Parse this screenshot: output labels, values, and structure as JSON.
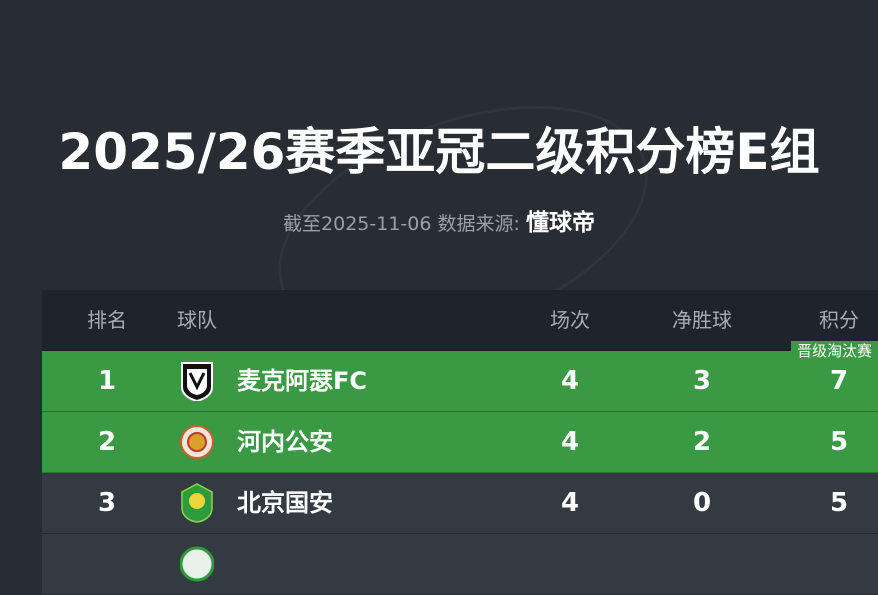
{
  "header": {
    "title": "2025/26赛季亚冠二级积分榜E组",
    "subtitle_prefix": "截至2025-11-06 数据来源:",
    "source": "懂球帝"
  },
  "table": {
    "columns": {
      "rank": "排名",
      "team": "球队",
      "played": "场次",
      "goal_diff": "净胜球",
      "points": "积分"
    },
    "qualify_badge": "晋级淘汰赛",
    "rows": [
      {
        "rank": "1",
        "team": "麦克阿瑟FC",
        "played": "4",
        "goal_diff": "3",
        "points": "7",
        "highlight": true
      },
      {
        "rank": "2",
        "team": "河内公安",
        "played": "4",
        "goal_diff": "2",
        "points": "5",
        "highlight": true
      },
      {
        "rank": "3",
        "team": "北京国安",
        "played": "4",
        "goal_diff": "0",
        "points": "5",
        "highlight": false
      }
    ]
  },
  "colors": {
    "qualify": "#3a9a44",
    "row_dark": "#343a42",
    "header_bg": "#1f232a",
    "background": "#282c33"
  }
}
